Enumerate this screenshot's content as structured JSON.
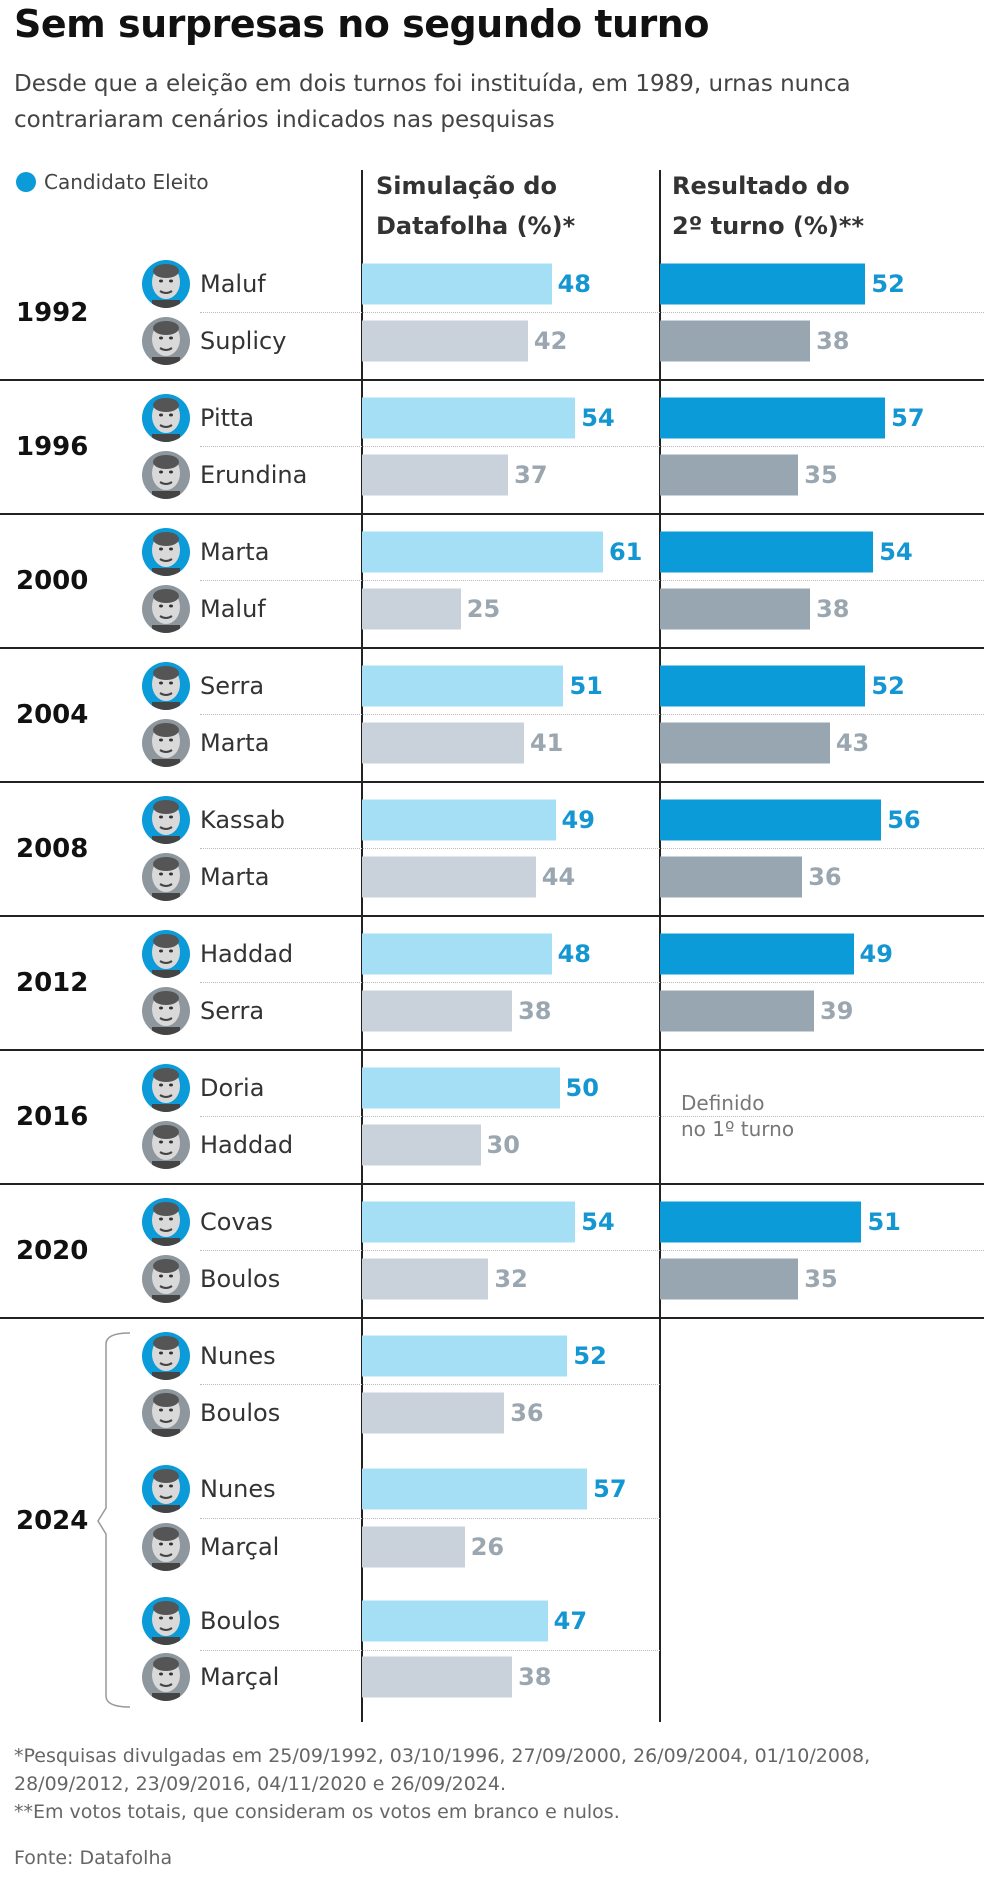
{
  "header": {
    "title": "Sem surpresas no segundo turno",
    "subtitle": "Desde que a eleição em dois turnos foi instituída, em 1989, urnas nunca contrariaram cenários indicados nas pesquisas",
    "legend": "Candidato Eleito",
    "col1": [
      "Simulação do",
      "Datafolha (%)*"
    ],
    "col2": [
      "Resultado do",
      "2º turno (%)**"
    ]
  },
  "colors": {
    "poll_winner": "#a5dff6",
    "poll_loser": "#c9d2da",
    "result_winner": "#0a9bd8",
    "result_loser": "#97a6b1",
    "value_winner": "#1496d2",
    "value_loser": "#9aa6b0"
  },
  "chart_data": {
    "type": "bar",
    "xlim": [
      0,
      100
    ],
    "groups": [
      {
        "year": "1992",
        "rows": [
          {
            "name": "Maluf",
            "winner": true,
            "poll": 48,
            "result": 52
          },
          {
            "name": "Suplicy",
            "winner": false,
            "poll": 42,
            "result": 38
          }
        ]
      },
      {
        "year": "1996",
        "rows": [
          {
            "name": "Pitta",
            "winner": true,
            "poll": 54,
            "result": 57
          },
          {
            "name": "Erundina",
            "winner": false,
            "poll": 37,
            "result": 35
          }
        ]
      },
      {
        "year": "2000",
        "rows": [
          {
            "name": "Marta",
            "winner": true,
            "poll": 61,
            "result": 54
          },
          {
            "name": "Maluf",
            "winner": false,
            "poll": 25,
            "result": 38
          }
        ]
      },
      {
        "year": "2004",
        "rows": [
          {
            "name": "Serra",
            "winner": true,
            "poll": 51,
            "result": 52
          },
          {
            "name": "Marta",
            "winner": false,
            "poll": 41,
            "result": 43
          }
        ]
      },
      {
        "year": "2008",
        "rows": [
          {
            "name": "Kassab",
            "winner": true,
            "poll": 49,
            "result": 56
          },
          {
            "name": "Marta",
            "winner": false,
            "poll": 44,
            "result": 36
          }
        ]
      },
      {
        "year": "2012",
        "rows": [
          {
            "name": "Haddad",
            "winner": true,
            "poll": 48,
            "result": 49
          },
          {
            "name": "Serra",
            "winner": false,
            "poll": 38,
            "result": 39
          }
        ]
      },
      {
        "year": "2016",
        "note": [
          "Definido",
          "no 1º turno"
        ],
        "rows": [
          {
            "name": "Doria",
            "winner": true,
            "poll": 50,
            "result": null
          },
          {
            "name": "Haddad",
            "winner": false,
            "poll": 30,
            "result": null
          }
        ]
      },
      {
        "year": "2020",
        "rows": [
          {
            "name": "Covas",
            "winner": true,
            "poll": 54,
            "result": 51
          },
          {
            "name": "Boulos",
            "winner": false,
            "poll": 32,
            "result": 35
          }
        ]
      },
      {
        "year": "2024",
        "rows": [
          {
            "name": "Nunes",
            "winner": true,
            "poll": 52,
            "result": null
          },
          {
            "name": "Boulos",
            "winner": false,
            "poll": 36,
            "result": null
          },
          {
            "name": "Nunes",
            "winner": true,
            "poll": 57,
            "result": null
          },
          {
            "name": "Marçal",
            "winner": false,
            "poll": 26,
            "result": null
          },
          {
            "name": "Boulos",
            "winner": true,
            "poll": 47,
            "result": null
          },
          {
            "name": "Marçal",
            "winner": false,
            "poll": 38,
            "result": null
          }
        ]
      }
    ]
  },
  "footer": {
    "notes": [
      "*Pesquisas divulgadas em 25/09/1992, 03/10/1996, 27/09/2000, 26/09/2004, 01/10/2008,",
      "28/09/2012, 23/09/2016, 04/11/2020 e 26/09/2024.",
      "**Em votos totais, que consideram os votos em branco e nulos."
    ],
    "source": "Fonte: Datafolha"
  }
}
